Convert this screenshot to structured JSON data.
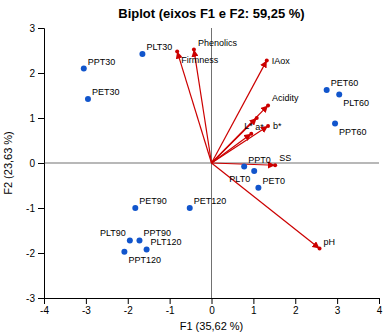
{
  "chart_data": {
    "type": "biplot",
    "title": "Biplot (eixos F1 e F2: 59,25 %)",
    "xlabel": "F1 (35,62 %)",
    "ylabel": "F2 (23,63 %)",
    "xlim": [
      -4,
      4
    ],
    "ylim": [
      -3,
      3
    ],
    "xticks": [
      -4,
      -3,
      -2,
      -1,
      0,
      1,
      2,
      3,
      4
    ],
    "yticks": [
      -3,
      -2,
      -1,
      0,
      1,
      2,
      3
    ],
    "grid": false,
    "samples": {
      "color": "#1155cc",
      "labels": [
        "PPT30",
        "PET30",
        "PLT30",
        "PET60",
        "PLT60",
        "PPT60",
        "PPT0",
        "PET0",
        "PLT0",
        "PET90",
        "PLT90",
        "PPT90",
        "PET120",
        "PLT120",
        "PPT120"
      ],
      "x": [
        -3.05,
        -2.95,
        -1.65,
        2.75,
        3.05,
        2.95,
        0.78,
        1.12,
        1.02,
        -1.82,
        -1.95,
        -1.72,
        -0.52,
        -1.55,
        -2.08
      ],
      "y": [
        2.1,
        1.42,
        2.42,
        1.62,
        1.52,
        0.88,
        -0.08,
        -0.55,
        -0.18,
        -1.0,
        -1.72,
        -1.72,
        -1.0,
        -1.92,
        -1.97
      ]
    },
    "vectors": {
      "color": "#cc0000",
      "labels": [
        "Firmness",
        "Phenolics",
        "IAox",
        "Acidity",
        "b*",
        "SS",
        "pH",
        "a*",
        "L*"
      ],
      "x": [
        -0.82,
        -0.42,
        1.32,
        1.35,
        1.35,
        1.52,
        2.58,
        0.95,
        1.08
      ],
      "y": [
        2.48,
        2.52,
        2.28,
        1.28,
        0.82,
        -0.05,
        -1.9,
        0.65,
        1.0
      ]
    }
  }
}
